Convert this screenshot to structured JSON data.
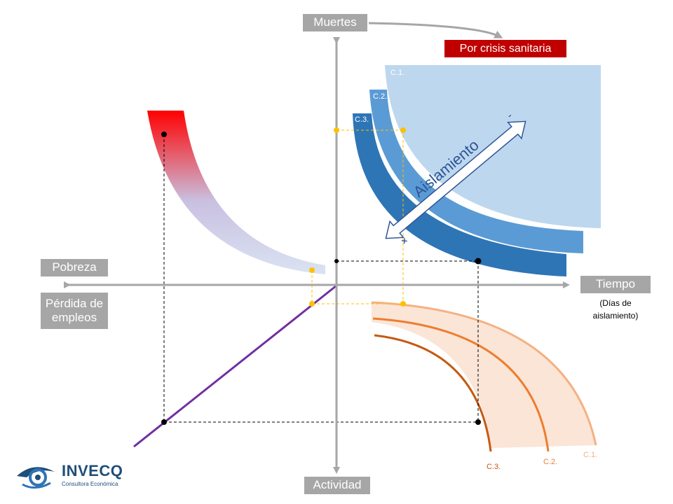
{
  "axes": {
    "top": "Muertes",
    "bottom": "Actividad",
    "left_upper": "Pobreza",
    "left_lower": "Pérdida de empleos",
    "right": "Tiempo",
    "right_note": "(Días de aislamiento)"
  },
  "crisis_label": "Por crisis sanitaria",
  "isolation": {
    "label": "Aislamiento",
    "minus": "-",
    "plus": "×"
  },
  "scenarios_health": [
    "C.1.",
    "C.2.",
    "C.3."
  ],
  "scenarios_activity": [
    "C.1.",
    "C.2.",
    "C.3."
  ],
  "logo": {
    "name": "INVECQ",
    "tagline": "Consultora Económica"
  },
  "colors": {
    "axis": "#a6a6a6",
    "c1_blue": "#bdd7ee",
    "c2_blue": "#5b9bd5",
    "c3_blue": "#2e75b6",
    "crisis_red": "#c00000",
    "poverty_red": "#ff0000",
    "poverty_pale": "#dae3f3",
    "activity_fill": "#fbe5d6",
    "activity_line_light": "#f4b183",
    "activity_line_mid": "#ed7d31",
    "activity_line_dark": "#c55a11",
    "guide_yellow": "#ffc000",
    "diagonal_purple": "#7030a0"
  }
}
